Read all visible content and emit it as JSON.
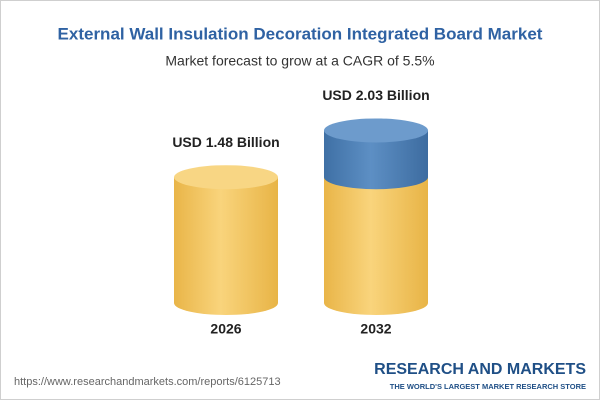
{
  "chart_data": {
    "type": "cylinder",
    "title": "External Wall Insulation Decoration Integrated Board Market",
    "subtitle": "Market forecast to grow at a CAGR of 5.5%",
    "categories": [
      "2026",
      "2032"
    ],
    "values": [
      1.48,
      2.03
    ],
    "value_labels": [
      "USD 1.48 Billion",
      "USD 2.03 Billion"
    ],
    "colors": {
      "base": "#f2c25a",
      "growth": "#4d7fb3"
    }
  },
  "footer": {
    "url": "https://www.researchandmarkets.com/reports/6125713",
    "brand": "RESEARCH AND MARKETS",
    "tagline": "THE WORLD'S LARGEST MARKET RESEARCH STORE"
  }
}
